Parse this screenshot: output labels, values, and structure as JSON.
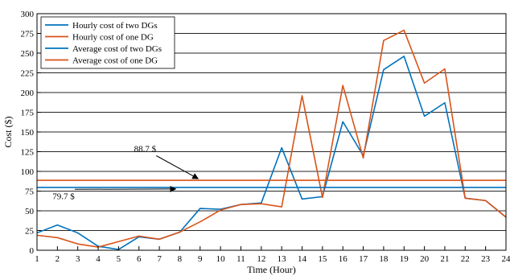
{
  "chart_data": {
    "type": "line",
    "xlabel": "Time (Hour)",
    "ylabel": "Cost ($)",
    "xlim": [
      1,
      24
    ],
    "ylim": [
      0,
      300
    ],
    "x": [
      1,
      2,
      3,
      4,
      5,
      6,
      7,
      8,
      9,
      10,
      11,
      12,
      13,
      14,
      15,
      16,
      17,
      18,
      19,
      20,
      21,
      22,
      23,
      24
    ],
    "x_ticks": [
      1,
      2,
      3,
      4,
      5,
      6,
      7,
      8,
      9,
      10,
      11,
      12,
      13,
      14,
      15,
      16,
      17,
      18,
      19,
      20,
      21,
      22,
      23,
      24
    ],
    "y_ticks": [
      0,
      25,
      50,
      75,
      100,
      125,
      150,
      175,
      200,
      225,
      250,
      275,
      300
    ],
    "grid": "horizontal",
    "legend_position": "top-left",
    "series": [
      {
        "name": "Hourly cost of two DGs",
        "color": "#0072BD",
        "values": [
          22,
          32,
          22,
          5,
          1,
          17,
          14,
          23,
          53,
          52,
          58,
          60,
          130,
          65,
          68,
          163,
          120,
          229,
          246,
          170,
          187,
          66,
          63,
          42
        ]
      },
      {
        "name": "Hourly cost of one DG",
        "color": "#D95319",
        "values": [
          19,
          16,
          8,
          4,
          11,
          18,
          14,
          23,
          36,
          51,
          58,
          59,
          55,
          196,
          67,
          209,
          117,
          266,
          279,
          212,
          230,
          66,
          63,
          42
        ]
      },
      {
        "name": "Average cost of two DGs",
        "color": "#0072BD",
        "values": [
          79.7,
          79.7,
          79.7,
          79.7,
          79.7,
          79.7,
          79.7,
          79.7,
          79.7,
          79.7,
          79.7,
          79.7,
          79.7,
          79.7,
          79.7,
          79.7,
          79.7,
          79.7,
          79.7,
          79.7,
          79.7,
          79.7,
          79.7,
          79.7
        ]
      },
      {
        "name": "Average cost of one DG",
        "color": "#D95319",
        "values": [
          88.7,
          88.7,
          88.7,
          88.7,
          88.7,
          88.7,
          88.7,
          88.7,
          88.7,
          88.7,
          88.7,
          88.7,
          88.7,
          88.7,
          88.7,
          88.7,
          88.7,
          88.7,
          88.7,
          88.7,
          88.7,
          88.7,
          88.7,
          88.7
        ]
      }
    ],
    "annotations": [
      {
        "text": "88.7 $",
        "target_x": 8.9,
        "target_y": 88.7,
        "label_x": 6.3,
        "label_y": 125
      },
      {
        "text": "79.7 $",
        "target_x": 7.8,
        "target_y": 79.7,
        "label_x": 2.3,
        "label_y": 65
      }
    ]
  }
}
